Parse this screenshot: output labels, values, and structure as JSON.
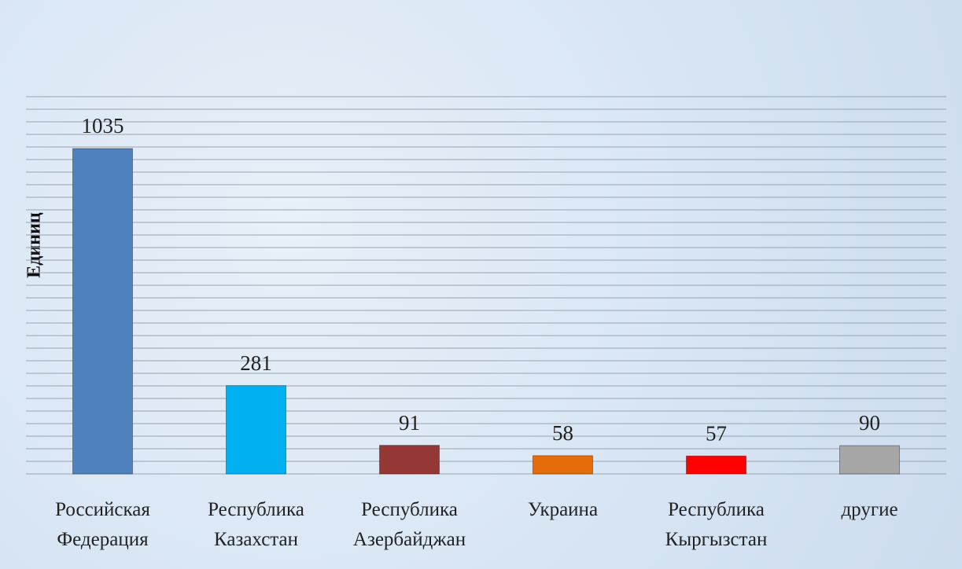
{
  "chart_data": {
    "type": "bar",
    "y_label": "Единиц",
    "categories": [
      "Российская Федерация",
      "Республика Казахстан",
      "Республика Азербайджан",
      "Украина",
      "Республика Кыргызстан",
      "другие"
    ],
    "values": [
      1035,
      281,
      91,
      58,
      57,
      90
    ],
    "colors": [
      "#4f81bd",
      "#00b0f0",
      "#953735",
      "#e46c0a",
      "#ff0000",
      "#a6a6a6"
    ],
    "ylim": [
      0,
      1200
    ],
    "yticks": [
      0,
      40,
      80,
      120,
      160,
      200,
      240,
      280,
      320,
      360,
      400,
      440,
      480,
      520,
      560,
      600,
      640,
      680,
      720,
      760,
      800,
      840,
      880,
      920,
      960,
      1000,
      1040,
      1080,
      1120,
      1160,
      1200
    ],
    "grid": true
  }
}
